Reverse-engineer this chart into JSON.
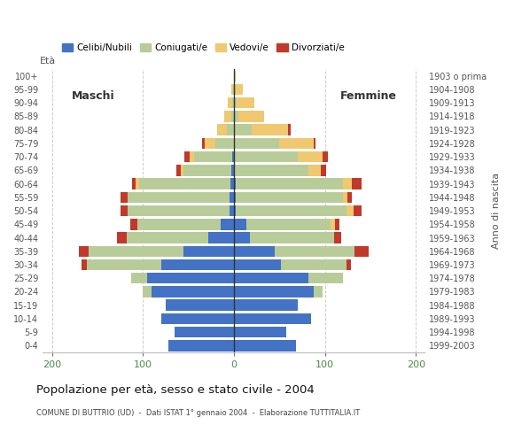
{
  "age_groups": [
    "0-4",
    "5-9",
    "10-14",
    "15-19",
    "20-24",
    "25-29",
    "30-34",
    "35-39",
    "40-44",
    "45-49",
    "50-54",
    "55-59",
    "60-64",
    "65-69",
    "70-74",
    "75-79",
    "80-84",
    "85-89",
    "90-94",
    "95-99",
    "100+"
  ],
  "birth_years": [
    "1999-2003",
    "1994-1998",
    "1989-1993",
    "1984-1988",
    "1979-1983",
    "1974-1978",
    "1969-1973",
    "1964-1968",
    "1959-1963",
    "1954-1958",
    "1949-1953",
    "1944-1948",
    "1939-1943",
    "1934-1938",
    "1929-1933",
    "1924-1928",
    "1919-1923",
    "1914-1918",
    "1909-1913",
    "1904-1908",
    "1903 o prima"
  ],
  "males": {
    "celibi": [
      72,
      65,
      80,
      75,
      90,
      95,
      80,
      55,
      28,
      14,
      5,
      5,
      4,
      3,
      2,
      0,
      0,
      0,
      0,
      0,
      0
    ],
    "coniugati": [
      0,
      0,
      0,
      0,
      10,
      18,
      82,
      105,
      90,
      92,
      112,
      112,
      100,
      52,
      42,
      20,
      8,
      3,
      2,
      1,
      0
    ],
    "vedovi": [
      0,
      0,
      0,
      0,
      0,
      0,
      0,
      0,
      0,
      0,
      0,
      0,
      4,
      3,
      5,
      12,
      10,
      8,
      5,
      2,
      0
    ],
    "divorziati": [
      0,
      0,
      0,
      0,
      0,
      0,
      5,
      10,
      10,
      8,
      8,
      8,
      4,
      5,
      5,
      3,
      0,
      0,
      0,
      0,
      0
    ]
  },
  "females": {
    "nubili": [
      68,
      58,
      85,
      70,
      88,
      82,
      52,
      45,
      18,
      14,
      2,
      2,
      2,
      0,
      0,
      0,
      0,
      0,
      0,
      0,
      0
    ],
    "coniugate": [
      0,
      0,
      0,
      0,
      10,
      38,
      72,
      88,
      92,
      92,
      122,
      118,
      118,
      82,
      70,
      50,
      20,
      5,
      3,
      2,
      0
    ],
    "vedove": [
      0,
      0,
      0,
      0,
      0,
      0,
      0,
      0,
      0,
      5,
      8,
      5,
      10,
      14,
      28,
      38,
      40,
      28,
      20,
      8,
      2
    ],
    "divorziate": [
      0,
      0,
      0,
      0,
      0,
      0,
      5,
      15,
      8,
      5,
      8,
      5,
      10,
      5,
      5,
      2,
      2,
      0,
      0,
      0,
      0
    ]
  },
  "colors": {
    "celibi_nubili": "#4472c4",
    "coniugati": "#b8cc9a",
    "vedovi": "#f0c870",
    "divorziati": "#c0392b"
  },
  "xlim": [
    -210,
    210
  ],
  "xtick_vals": [
    -200,
    -100,
    0,
    100,
    200
  ],
  "xticklabels": [
    "200",
    "100",
    "0",
    "100",
    "200"
  ],
  "title": "Popolazione per età, sesso e stato civile - 2004",
  "subtitle": "COMUNE DI BUTTRIO (UD)  -  Dati ISTAT 1° gennaio 2004  -  Elaborazione TUTTITALIA.IT",
  "label_maschi": "Maschi",
  "label_femmine": "Femmine",
  "ylabel_eta": "Età",
  "ylabel_nascita": "Anno di nascita",
  "legend_labels": [
    "Celibi/Nubili",
    "Coniugati/e",
    "Vedovi/e",
    "Divorziati/e"
  ],
  "bar_height": 0.82,
  "bg_color": "#ffffff",
  "grid_color": "#cccccc",
  "tick_color_x": "#4a8a4a",
  "text_color": "#555555"
}
